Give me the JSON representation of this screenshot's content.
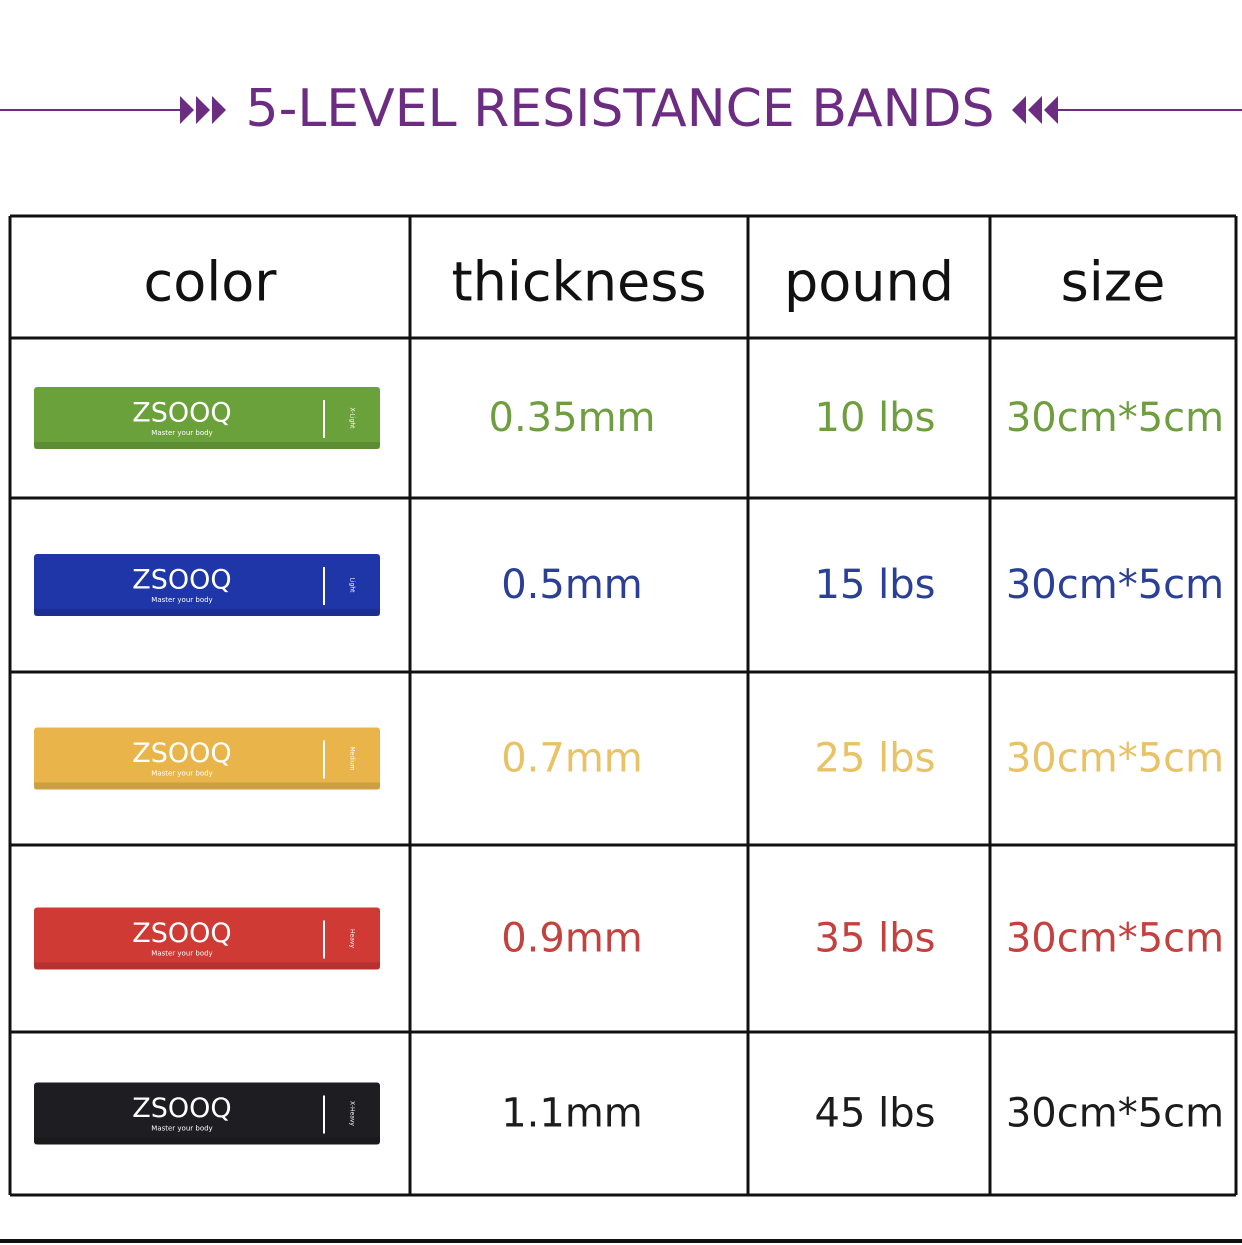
{
  "header": {
    "title": "5-LEVEL RESISTANCE BANDS",
    "color": "#6b2c82"
  },
  "table": {
    "columns": [
      "color",
      "thickness",
      "pound",
      "size"
    ],
    "rows": [
      {
        "band": {
          "brand": "ZSOOQ",
          "tagline": "Master your body",
          "level": "X-Light"
        },
        "color": "#6aa13a",
        "text_color": "#6f9e3e",
        "thickness": "0.35mm",
        "pound": "10 lbs",
        "size": "30cm*5cm"
      },
      {
        "band": {
          "brand": "ZSOOQ",
          "tagline": "Master your body",
          "level": "Light"
        },
        "color": "#1f36a8",
        "text_color": "#2b3f96",
        "thickness": "0.5mm",
        "pound": "15 lbs",
        "size": "30cm*5cm"
      },
      {
        "band": {
          "brand": "ZSOOQ",
          "tagline": "Master your body",
          "level": "Medium"
        },
        "color": "#e9b54a",
        "text_color": "#e8c264",
        "thickness": "0.7mm",
        "pound": "25 lbs",
        "size": "30cm*5cm"
      },
      {
        "band": {
          "brand": "ZSOOQ",
          "tagline": "Master your body",
          "level": "Heavy"
        },
        "color": "#cf3a35",
        "text_color": "#c3423f",
        "thickness": "0.9mm",
        "pound": "35 lbs",
        "size": "30cm*5cm"
      },
      {
        "band": {
          "brand": "ZSOOQ",
          "tagline": "Master your body",
          "level": "X-Heavy"
        },
        "color": "#1e1e22",
        "text_color": "#1c1c1c",
        "thickness": "1.1mm",
        "pound": "45 lbs",
        "size": "30cm*5cm"
      }
    ]
  }
}
